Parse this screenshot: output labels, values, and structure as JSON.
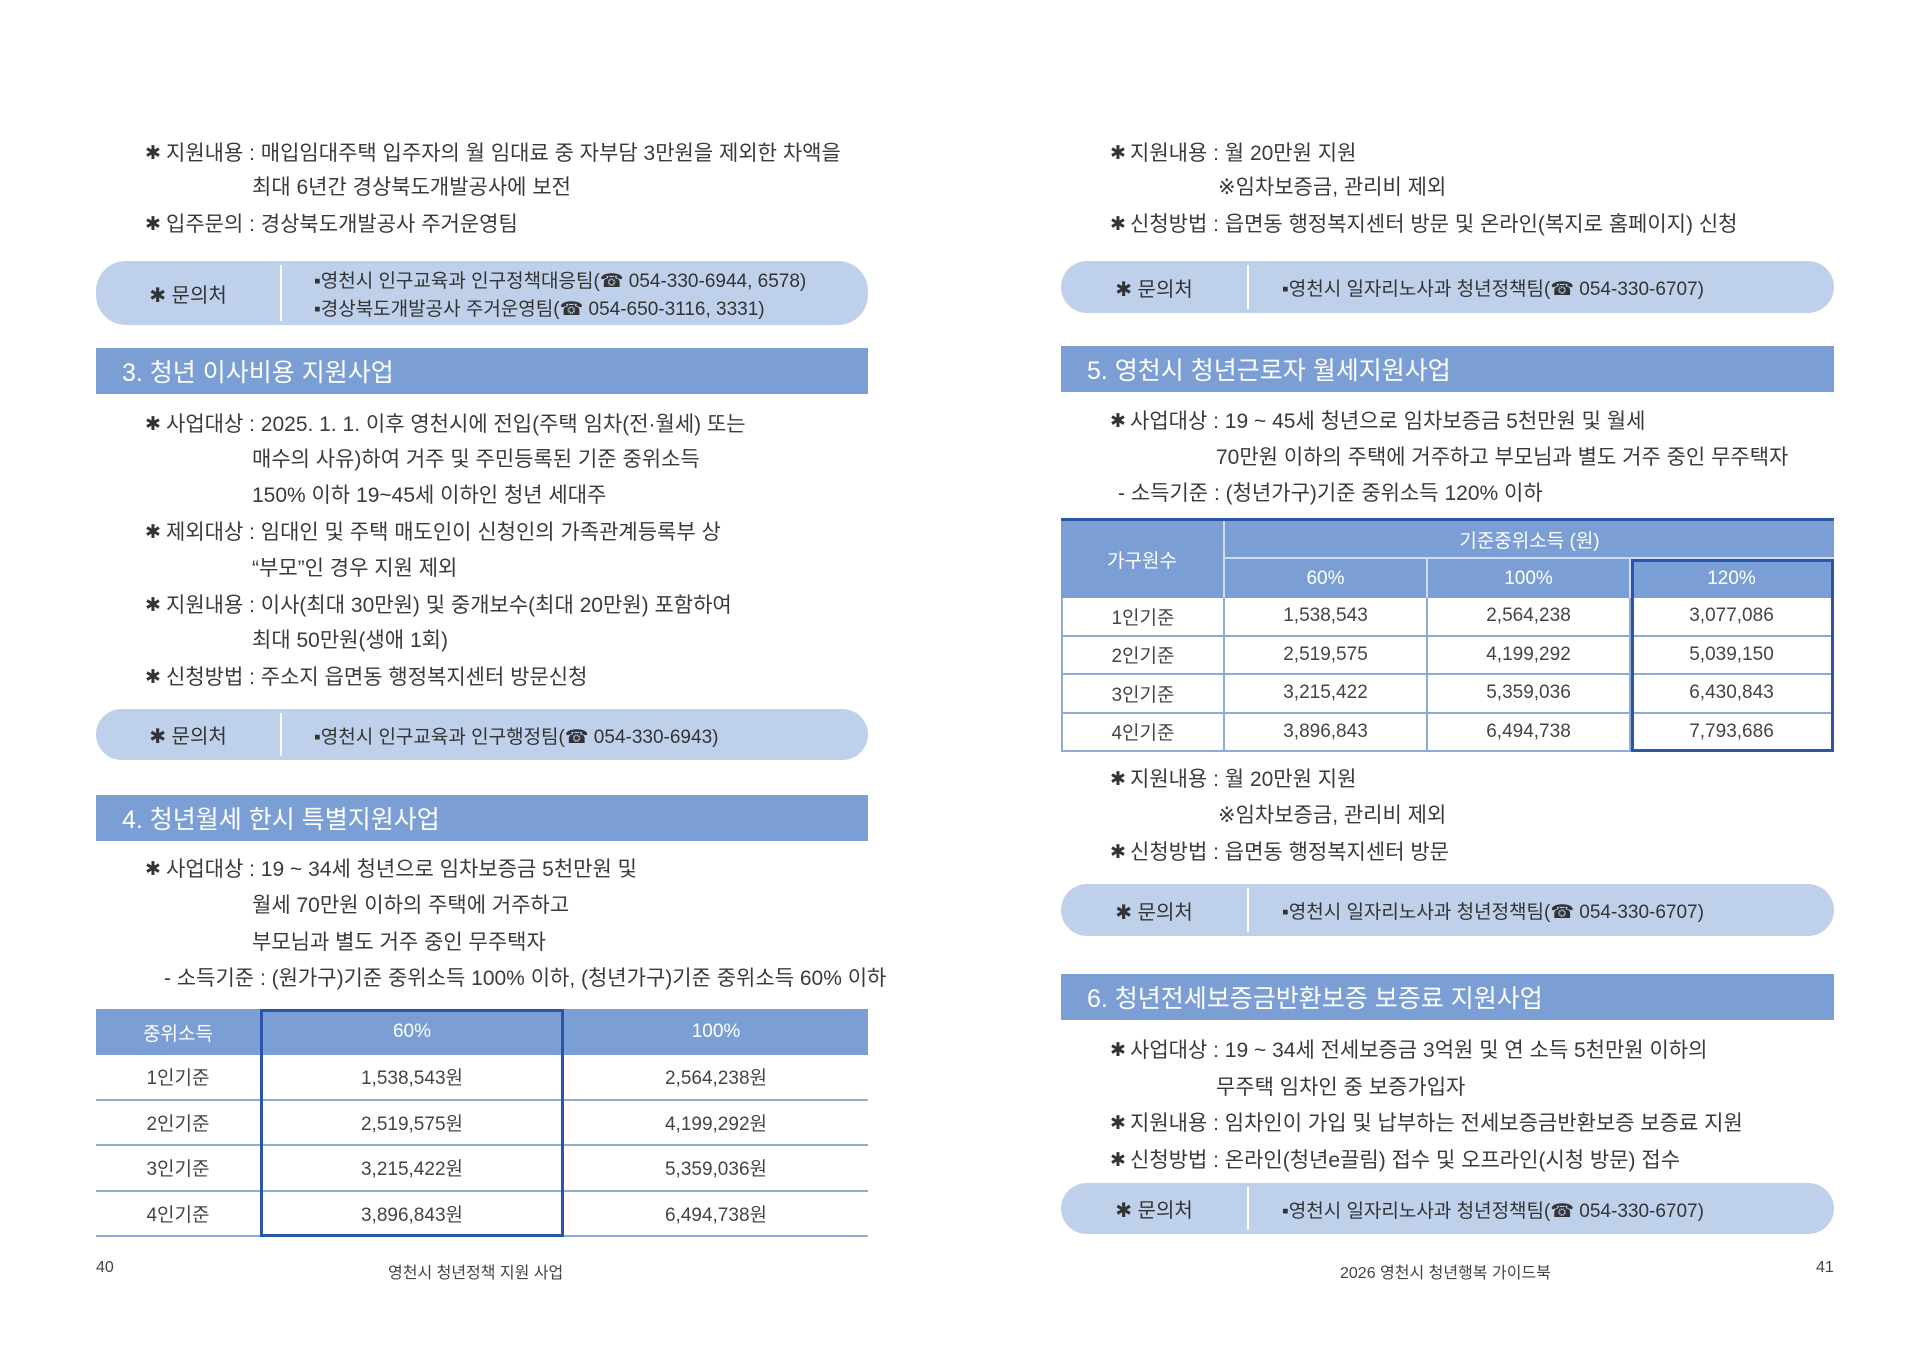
{
  "colors": {
    "heading": "#7b9fd5",
    "pill": "#bfd0ea",
    "highlight": "#2a55a8"
  },
  "left": {
    "block1": [
      {
        "label": "지원내용 : ",
        "text": "매입임대주택 입주자의 월 임대료 중 자부담 3만원을 제외한 차액을"
      },
      {
        "cont": "최대 6년간 경상북도개발공사에 보전"
      },
      {
        "label": "입주문의 : ",
        "text": "경상북도개발공사 주거운영팀"
      }
    ],
    "contact1": {
      "label": "✱ 문의처",
      "lines": [
        "▪영천시 인구교육과 인구정책대응팀(☎ 054-330-6944, 6578)",
        "▪경상북도개발공사 주거운영팀(☎ 054-650-3116, 3331)"
      ]
    },
    "section3": {
      "title": "3. 청년 이사비용 지원사업",
      "lines": [
        {
          "label": "사업대상 : ",
          "text": "2025. 1. 1. 이후 영천시에 전입(주택 임차(전·월세) 또는"
        },
        {
          "cont": "매수의 사유)하여 거주 및 주민등록된 기준 중위소득"
        },
        {
          "cont": "150% 이하 19~45세 이하인 청년 세대주"
        },
        {
          "label": "제외대상 : ",
          "text": "임대인 및 주택 매도인이 신청인의 가족관계등록부 상"
        },
        {
          "cont": "“부모”인 경우 지원 제외"
        },
        {
          "label": "지원내용 : ",
          "text": "이사(최대 30만원) 및 중개보수(최대 20만원) 포함하여"
        },
        {
          "cont": "최대 50만원(생애 1회)"
        },
        {
          "label": "신청방법 : ",
          "text": "주소지 읍면동 행정복지센터 방문신청"
        }
      ]
    },
    "contact2": {
      "label": "✱ 문의처",
      "lines": [
        "▪영천시 인구교육과 인구행정팀(☎ 054-330-6943)"
      ]
    },
    "section4": {
      "title": "4. 청년월세 한시 특별지원사업",
      "lines": [
        {
          "label": "사업대상 : ",
          "text": "19 ~ 34세 청년으로 임차보증금 5천만원 및"
        },
        {
          "cont": "월세 70만원 이하의 주택에 거주하고"
        },
        {
          "cont": "부모님과 별도 거주 중인 무주택자"
        },
        {
          "dash": "- 소득기준 : (원가구)기준 중위소득 100% 이하, (청년가구)기준 중위소득 60% 이하"
        }
      ]
    },
    "table": {
      "headers": [
        "중위소득",
        "60%",
        "100%"
      ],
      "rows": [
        [
          "1인기준",
          "1,538,543원",
          "2,564,238원"
        ],
        [
          "2인기준",
          "2,519,575원",
          "4,199,292원"
        ],
        [
          "3인기준",
          "3,215,422원",
          "5,359,036원"
        ],
        [
          "4인기준",
          "3,896,843원",
          "6,494,738원"
        ]
      ]
    },
    "footer": {
      "page": "40",
      "title": "영천시 청년정책 지원 사업"
    }
  },
  "right": {
    "block1": [
      {
        "label": "지원내용 : ",
        "text": "월 20만원 지원"
      },
      {
        "note": "※임차보증금, 관리비 제외"
      },
      {
        "label": "신청방법 : ",
        "text": "읍면동 행정복지센터 방문 및 온라인(복지로 홈페이지) 신청"
      }
    ],
    "contact1": {
      "label": "✱ 문의처",
      "lines": [
        "▪영천시 일자리노사과 청년정책팀(☎ 054-330-6707)"
      ]
    },
    "section5": {
      "title": "5. 영천시 청년근로자 월세지원사업",
      "lines": [
        {
          "label": "사업대상 : ",
          "text": "19 ~ 45세 청년으로 임차보증금 5천만원 및 월세"
        },
        {
          "cont": "70만원 이하의 주택에 거주하고 부모님과 별도 거주 중인 무주택자"
        },
        {
          "dash": "- 소득기준 : (청년가구)기준 중위소득 120% 이하"
        }
      ]
    },
    "table": {
      "corner": "가구원수",
      "group": "기준중위소득 (원)",
      "headers": [
        "60%",
        "100%",
        "120%"
      ],
      "rows": [
        [
          "1인기준",
          "1,538,543",
          "2,564,238",
          "3,077,086"
        ],
        [
          "2인기준",
          "2,519,575",
          "4,199,292",
          "5,039,150"
        ],
        [
          "3인기준",
          "3,215,422",
          "5,359,036",
          "6,430,843"
        ],
        [
          "4인기준",
          "3,896,843",
          "6,494,738",
          "7,793,686"
        ]
      ]
    },
    "block2": [
      {
        "label": "지원내용 : ",
        "text": "월 20만원 지원"
      },
      {
        "note": "※임차보증금, 관리비 제외"
      },
      {
        "label": "신청방법 : ",
        "text": "읍면동 행정복지센터 방문"
      }
    ],
    "contact2": {
      "label": "✱ 문의처",
      "lines": [
        "▪영천시 일자리노사과 청년정책팀(☎ 054-330-6707)"
      ]
    },
    "section6": {
      "title": "6. 청년전세보증금반환보증 보증료 지원사업",
      "lines": [
        {
          "label": "사업대상 : ",
          "text": "19 ~ 34세 전세보증금 3억원 및 연 소득 5천만원 이하의"
        },
        {
          "cont": "무주택 임차인 중 보증가입자"
        },
        {
          "label": "지원내용 : ",
          "text": "임차인이 가입 및 납부하는 전세보증금반환보증 보증료 지원"
        },
        {
          "label": "신청방법 : ",
          "text": "온라인(청년e끌림) 접수 및 오프라인(시청 방문) 접수"
        }
      ]
    },
    "contact3": {
      "label": "✱ 문의처",
      "lines": [
        "▪영천시 일자리노사과 청년정책팀(☎ 054-330-6707)"
      ]
    },
    "footer": {
      "page": "41",
      "title": "2026 영천시 청년행복 가이드북"
    }
  }
}
